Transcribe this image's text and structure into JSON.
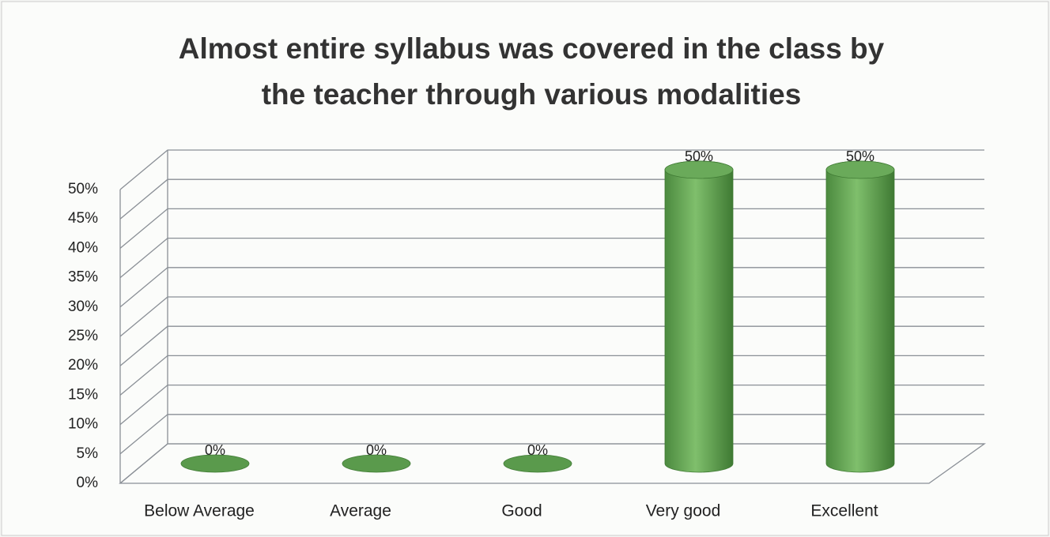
{
  "chart_data": {
    "type": "bar3d",
    "title": [
      "Almost entire syllabus was covered in the class by",
      "the teacher through various modalities"
    ],
    "categories": [
      "Below Average",
      "Average",
      "Good",
      "Very good",
      "Excellent"
    ],
    "values": [
      0,
      0,
      0,
      50,
      50
    ],
    "value_labels": [
      "0%",
      "0%",
      "0%",
      "50%",
      "50%"
    ],
    "color": "#5a9a4c",
    "ylim": [
      0,
      50
    ],
    "yticks": [
      {
        "value": 0,
        "label": "0%"
      },
      {
        "value": 5,
        "label": "5%"
      },
      {
        "value": 10,
        "label": "10%"
      },
      {
        "value": 15,
        "label": "15%"
      },
      {
        "value": 20,
        "label": "20%"
      },
      {
        "value": 25,
        "label": "25%"
      },
      {
        "value": 30,
        "label": "30%"
      },
      {
        "value": 35,
        "label": "35%"
      },
      {
        "value": 40,
        "label": "40%"
      },
      {
        "value": 45,
        "label": "45%"
      },
      {
        "value": 50,
        "label": "50%"
      }
    ],
    "grid": true
  }
}
